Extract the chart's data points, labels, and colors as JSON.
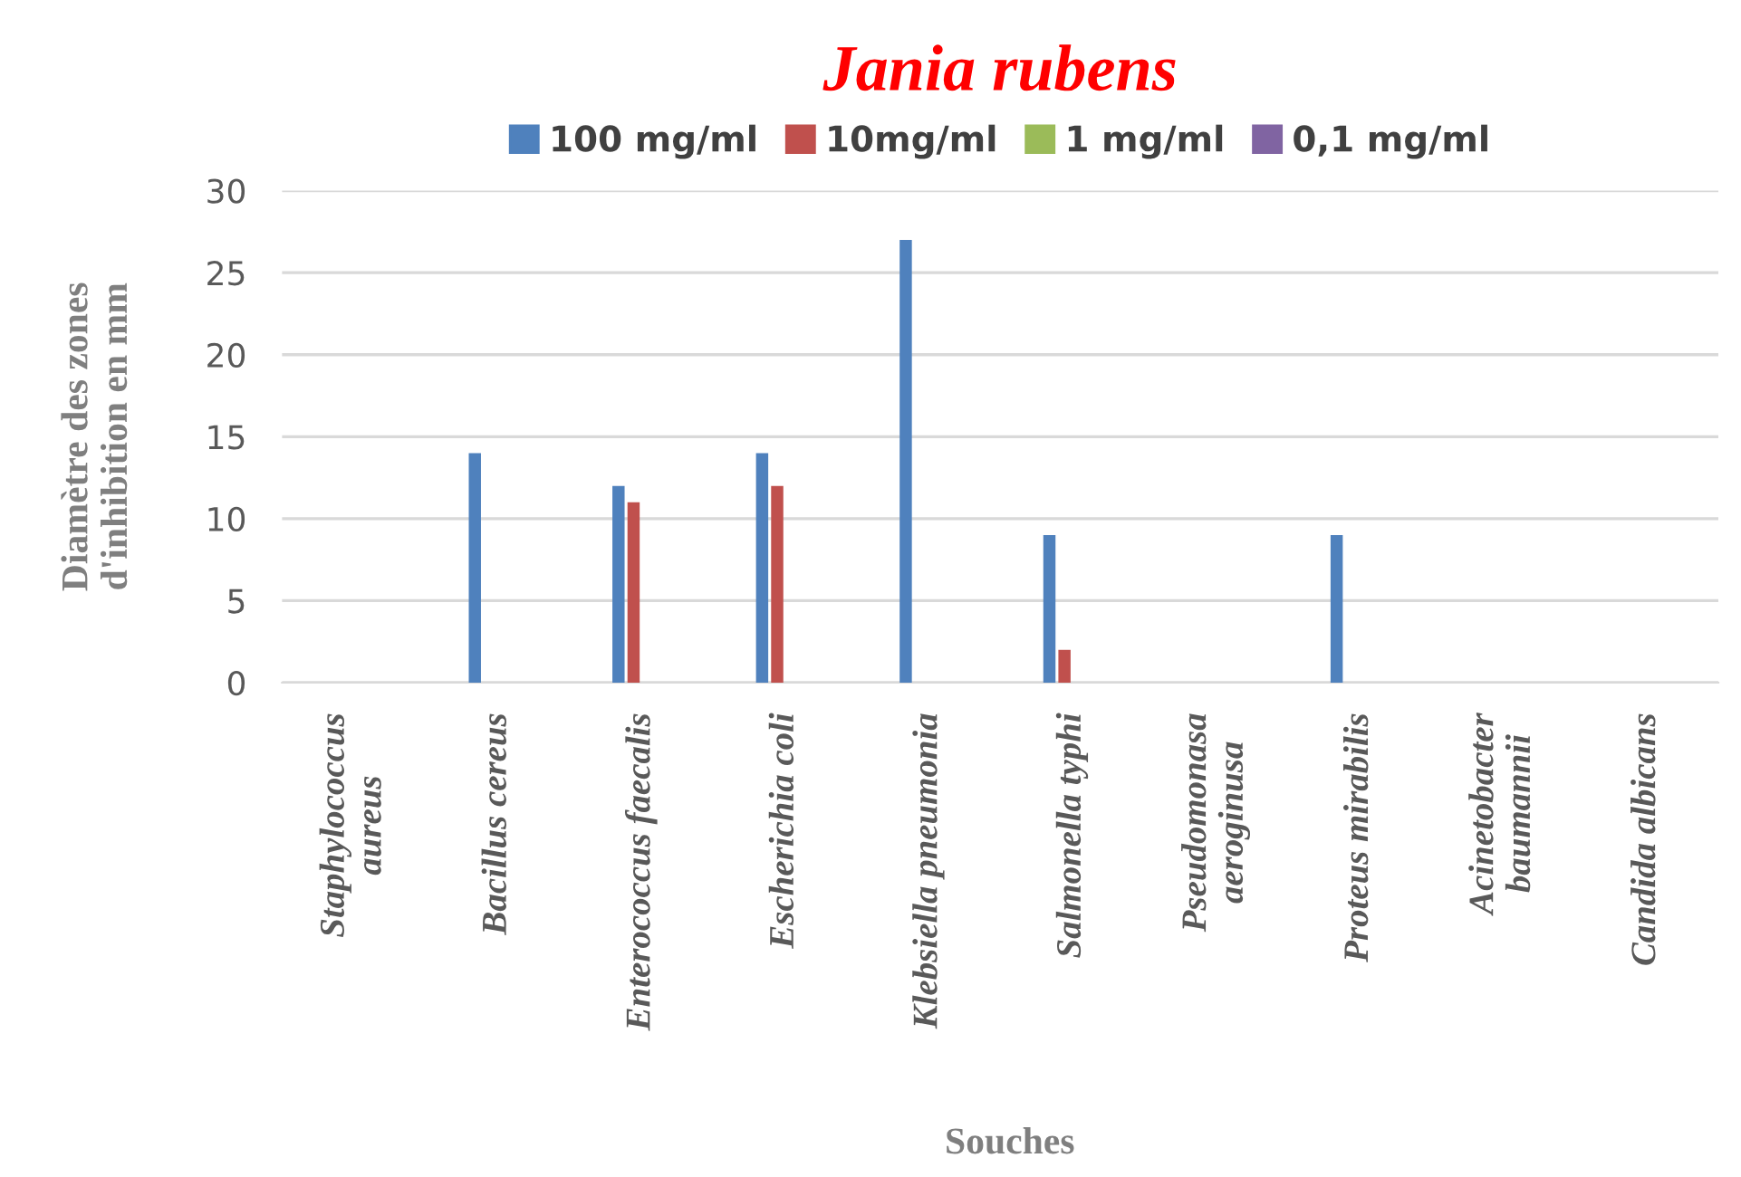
{
  "chart_data": {
    "type": "bar",
    "title": "Jania rubens",
    "xlabel": "Souches",
    "ylabel": "Diamètre des zones\nd'inhibition en mm",
    "categories": [
      "Staphylococcus\naureus",
      "Bacillus cereus",
      "Enterococcus faecalis",
      "Escherichia coli",
      "Klebsiella pneumonia",
      "Salmonella typhi",
      "Pseudomonasa\naeroginusa",
      "Proteus mirabilis",
      "Acinetobacter\nbaumannii",
      "Candida albicans"
    ],
    "series": [
      {
        "name": "100 mg/ml",
        "color": "#4f81bd",
        "values": [
          null,
          14,
          12,
          14,
          27,
          9,
          null,
          9,
          null,
          null
        ]
      },
      {
        "name": "10mg/ml",
        "color": "#c0504d",
        "values": [
          null,
          null,
          11,
          12,
          null,
          2,
          null,
          null,
          null,
          null
        ]
      },
      {
        "name": "1 mg/ml",
        "color": "#9bbb59",
        "values": [
          null,
          null,
          null,
          null,
          null,
          null,
          null,
          null,
          null,
          null
        ]
      },
      {
        "name": "0,1 mg/ml",
        "color": "#8064a2",
        "values": [
          null,
          null,
          null,
          null,
          null,
          null,
          null,
          null,
          null,
          null
        ]
      }
    ],
    "ylim": [
      0,
      30
    ],
    "yticks": [
      0,
      5,
      10,
      15,
      20,
      25,
      30
    ],
    "grid": "y",
    "legend": "top"
  }
}
